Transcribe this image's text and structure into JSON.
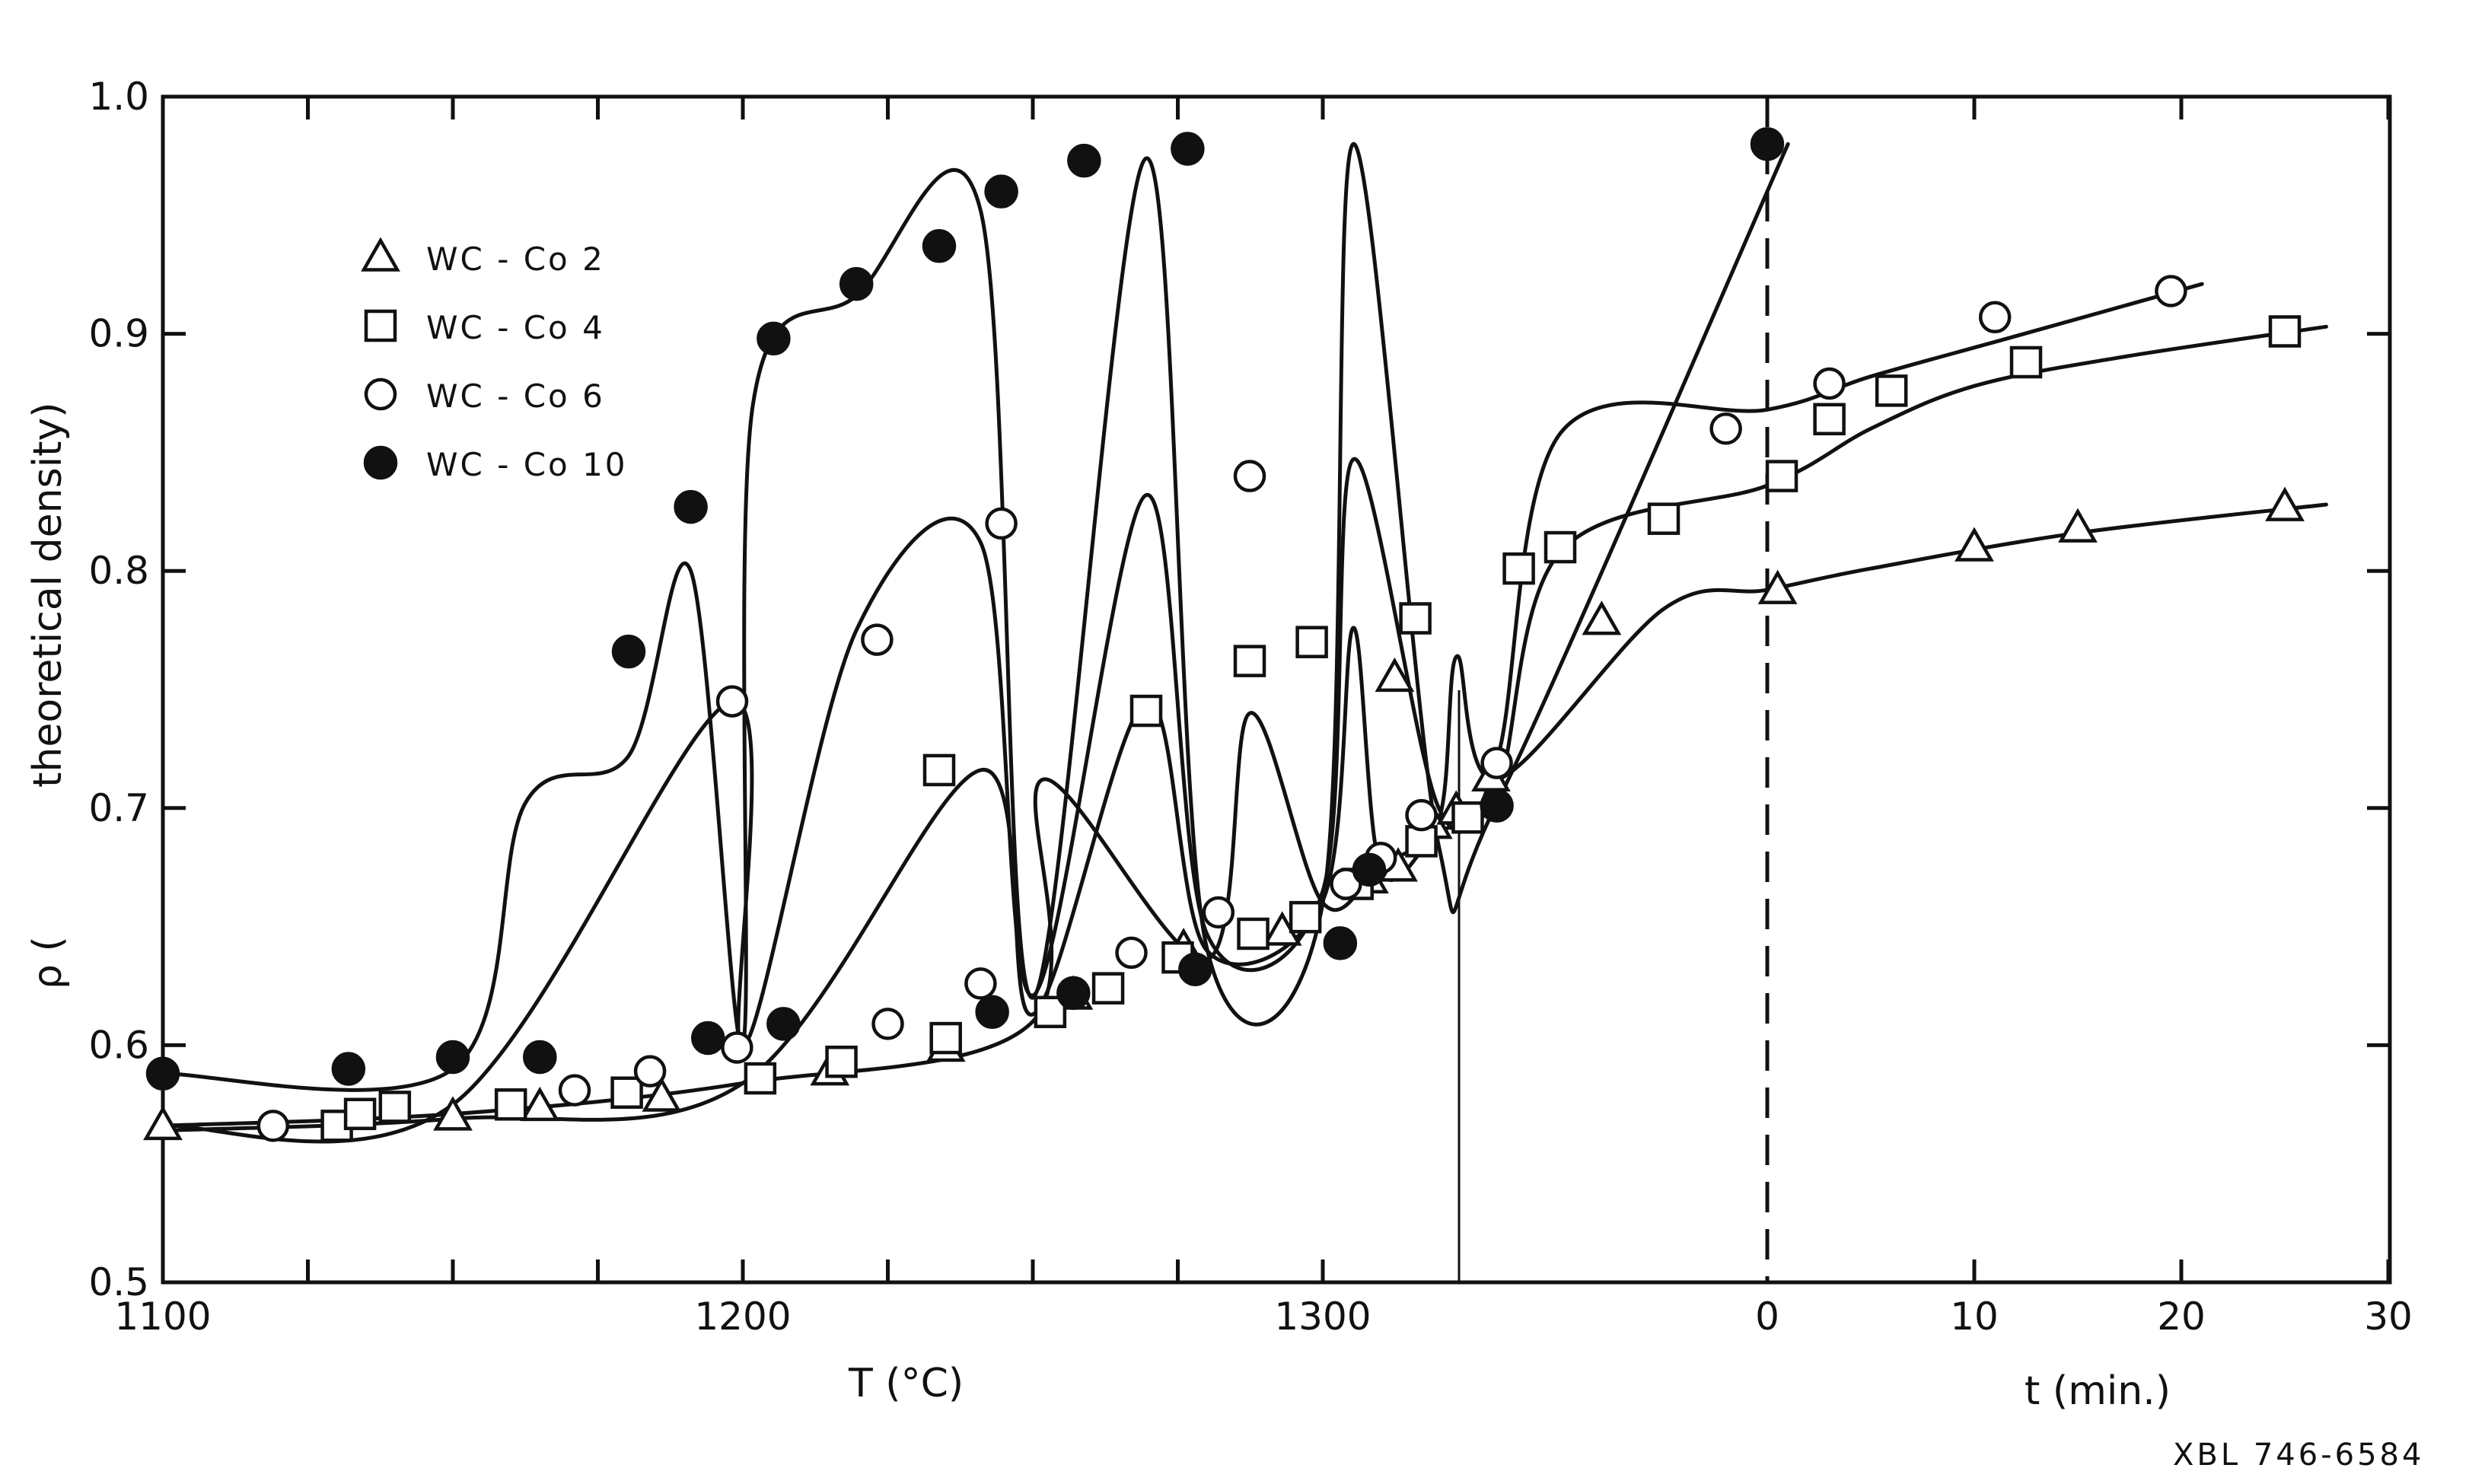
{
  "chart_data": {
    "type": "scatter",
    "title": "",
    "ylabel_symbol": "ρ (",
    "ylabel_text": "theoretical density)",
    "xlabel_temperature": "T (°C)",
    "xlabel_time": "t (min.)",
    "figure_code": "XBL 746-6584",
    "ylim": [
      0.5,
      1.0
    ],
    "y_ticks": [
      0.5,
      0.6,
      0.7,
      0.8,
      0.9,
      1.0
    ],
    "y_tick_labels": [
      "0.5",
      "0.6",
      "0.7",
      "0.8",
      "0.9",
      "1.0"
    ],
    "temperature_axis": {
      "range": [
        1100,
        1330
      ],
      "ticks": [
        1100,
        1200,
        1300
      ],
      "tick_labels": [
        "1100",
        "1200",
        "1300"
      ]
    },
    "time_axis": {
      "range": [
        0,
        30
      ],
      "ticks": [
        0,
        10,
        20,
        30
      ],
      "tick_labels": [
        "0",
        "10",
        "20",
        "30"
      ]
    },
    "grid": false,
    "legend_position": "top-left",
    "series": [
      {
        "name": "WC-Co 2",
        "legend_label": "WC - Co 2",
        "marker": "triangle-open",
        "temperature_points": [
          [
            1100,
            0.566
          ],
          [
            1150,
            0.57
          ],
          [
            1165,
            0.574
          ],
          [
            1186,
            0.578
          ],
          [
            1215,
            0.589
          ],
          [
            1235,
            0.599
          ],
          [
            1257,
            0.621
          ],
          [
            1276,
            0.641
          ],
          [
            1293,
            0.648
          ],
          [
            1308,
            0.67
          ],
          [
            1313,
            0.675
          ],
          [
            1319,
            0.693
          ],
          [
            1323,
            0.699
          ],
          [
            1329,
            0.713
          ]
        ],
        "time_points": [
          [
            -18,
            0.755
          ],
          [
            -8,
            0.779
          ],
          [
            0.5,
            0.792
          ],
          [
            10,
            0.81
          ],
          [
            15,
            0.818
          ],
          [
            25,
            0.827
          ]
        ],
        "temperature_curve": [
          [
            1100,
            0.566
          ],
          [
            1150,
            0.571
          ],
          [
            1200,
            0.584
          ],
          [
            1250,
            0.61
          ],
          [
            1280,
            0.636
          ],
          [
            1300,
            0.66
          ],
          [
            1310,
            0.676
          ],
          [
            1320,
            0.695
          ],
          [
            1330,
            0.712
          ]
        ],
        "time_curve": [
          [
            -35,
            0.712
          ],
          [
            -25,
            0.74
          ],
          [
            -15,
            0.764
          ],
          [
            -5,
            0.784
          ],
          [
            0,
            0.792
          ],
          [
            5,
            0.801
          ],
          [
            15,
            0.816
          ],
          [
            27,
            0.828
          ]
        ]
      },
      {
        "name": "WC-Co 4",
        "legend_label": "WC - Co 4",
        "marker": "square-open",
        "temperature_points": [
          [
            1130,
            0.566
          ],
          [
            1134,
            0.571
          ],
          [
            1140,
            0.574
          ],
          [
            1160,
            0.575
          ],
          [
            1180,
            0.58
          ],
          [
            1203,
            0.586
          ],
          [
            1217,
            0.593
          ],
          [
            1235,
            0.603
          ],
          [
            1253,
            0.614
          ],
          [
            1263,
            0.624
          ],
          [
            1275,
            0.637
          ],
          [
            1288,
            0.647
          ],
          [
            1297,
            0.654
          ],
          [
            1306,
            0.668
          ],
          [
            1317,
            0.686
          ],
          [
            1325,
            0.696
          ]
        ],
        "time_points": [
          [
            -40,
            0.716
          ],
          [
            -30,
            0.741
          ],
          [
            -25,
            0.762
          ],
          [
            -22,
            0.77
          ],
          [
            -17,
            0.78
          ],
          [
            -12,
            0.801
          ],
          [
            -10,
            0.81
          ],
          [
            -5,
            0.822
          ],
          [
            0.7,
            0.84
          ],
          [
            3,
            0.864
          ],
          [
            6,
            0.876
          ],
          [
            12.5,
            0.888
          ],
          [
            25,
            0.901
          ]
        ],
        "temperature_curve": [
          [
            1100,
            0.564
          ],
          [
            1150,
            0.569
          ],
          [
            1200,
            0.584
          ],
          [
            1250,
            0.613
          ],
          [
            1280,
            0.64
          ],
          [
            1300,
            0.661
          ],
          [
            1310,
            0.674
          ],
          [
            1320,
            0.69
          ],
          [
            1330,
            0.706
          ]
        ],
        "time_curve": [
          [
            -38,
            0.716
          ],
          [
            -30,
            0.745
          ],
          [
            -20,
            0.776
          ],
          [
            -10,
            0.808
          ],
          [
            0,
            0.836
          ],
          [
            5,
            0.86
          ],
          [
            10,
            0.878
          ],
          [
            17,
            0.89
          ],
          [
            27,
            0.903
          ]
        ]
      },
      {
        "name": "WC-Co 6",
        "legend_label": "WC - Co 6",
        "marker": "circle-open",
        "temperature_points": [
          [
            1119,
            0.566
          ],
          [
            1171,
            0.581
          ],
          [
            1184,
            0.589
          ],
          [
            1199,
            0.599
          ],
          [
            1225,
            0.609
          ],
          [
            1241,
            0.626
          ],
          [
            1267,
            0.639
          ],
          [
            1282,
            0.656
          ],
          [
            1304,
            0.668
          ],
          [
            1310,
            0.679
          ],
          [
            1317,
            0.697
          ],
          [
            1330,
            0.719
          ]
        ],
        "time_points": [
          [
            -50,
            0.745
          ],
          [
            -43,
            0.771
          ],
          [
            -37,
            0.82
          ],
          [
            -25,
            0.84
          ],
          [
            -2,
            0.86
          ],
          [
            3,
            0.879
          ],
          [
            11,
            0.907
          ],
          [
            19.5,
            0.918
          ]
        ],
        "temperature_curve": [
          [
            1100,
            0.566
          ],
          [
            1150,
            0.575
          ],
          [
            1200,
            0.599
          ],
          [
            1250,
            0.621
          ],
          [
            1280,
            0.647
          ],
          [
            1300,
            0.665
          ],
          [
            1320,
            0.7
          ],
          [
            1330,
            0.72
          ]
        ],
        "time_curve": [
          [
            -50,
            0.745
          ],
          [
            -44,
            0.775
          ],
          [
            -38,
            0.812
          ],
          [
            -30,
            0.832
          ],
          [
            -20,
            0.847
          ],
          [
            -10,
            0.858
          ],
          [
            0,
            0.868
          ],
          [
            5,
            0.882
          ],
          [
            12,
            0.899
          ],
          [
            21,
            0.921
          ]
        ]
      },
      {
        "name": "WC-Co 10",
        "legend_label": "WC - Co 10",
        "marker": "circle-filled",
        "temperature_points": [
          [
            1100,
            0.588
          ],
          [
            1132,
            0.59
          ],
          [
            1150,
            0.595
          ],
          [
            1165,
            0.595
          ],
          [
            1194,
            0.603
          ],
          [
            1207,
            0.609
          ],
          [
            1243,
            0.614
          ],
          [
            1257,
            0.622
          ],
          [
            1278,
            0.632
          ],
          [
            1303,
            0.643
          ],
          [
            1308,
            0.674
          ],
          [
            1330,
            0.701
          ]
        ],
        "time_points": [
          [
            -55,
            0.766
          ],
          [
            -52,
            0.827
          ],
          [
            -48,
            0.898
          ],
          [
            -44,
            0.921
          ],
          [
            -40,
            0.937
          ],
          [
            -37,
            0.96
          ],
          [
            -33,
            0.973
          ],
          [
            -28,
            0.978
          ],
          [
            0,
            0.98
          ]
        ],
        "temperature_curve": [
          [
            1100,
            0.588
          ],
          [
            1150,
            0.59
          ],
          [
            1200,
            0.6
          ],
          [
            1250,
            0.62
          ],
          [
            1280,
            0.641
          ],
          [
            1300,
            0.66
          ],
          [
            1320,
            0.684
          ],
          [
            1330,
            0.702
          ]
        ],
        "time_curve": [
          [
            -60,
            0.702
          ],
          [
            -55,
            0.722
          ],
          [
            -52,
            0.8
          ],
          [
            -49,
            0.87
          ],
          [
            -44,
            0.916
          ],
          [
            -38,
            0.952
          ],
          [
            -30,
            0.974
          ],
          [
            -20,
            0.98
          ],
          [
            1,
            0.98
          ]
        ]
      }
    ]
  }
}
